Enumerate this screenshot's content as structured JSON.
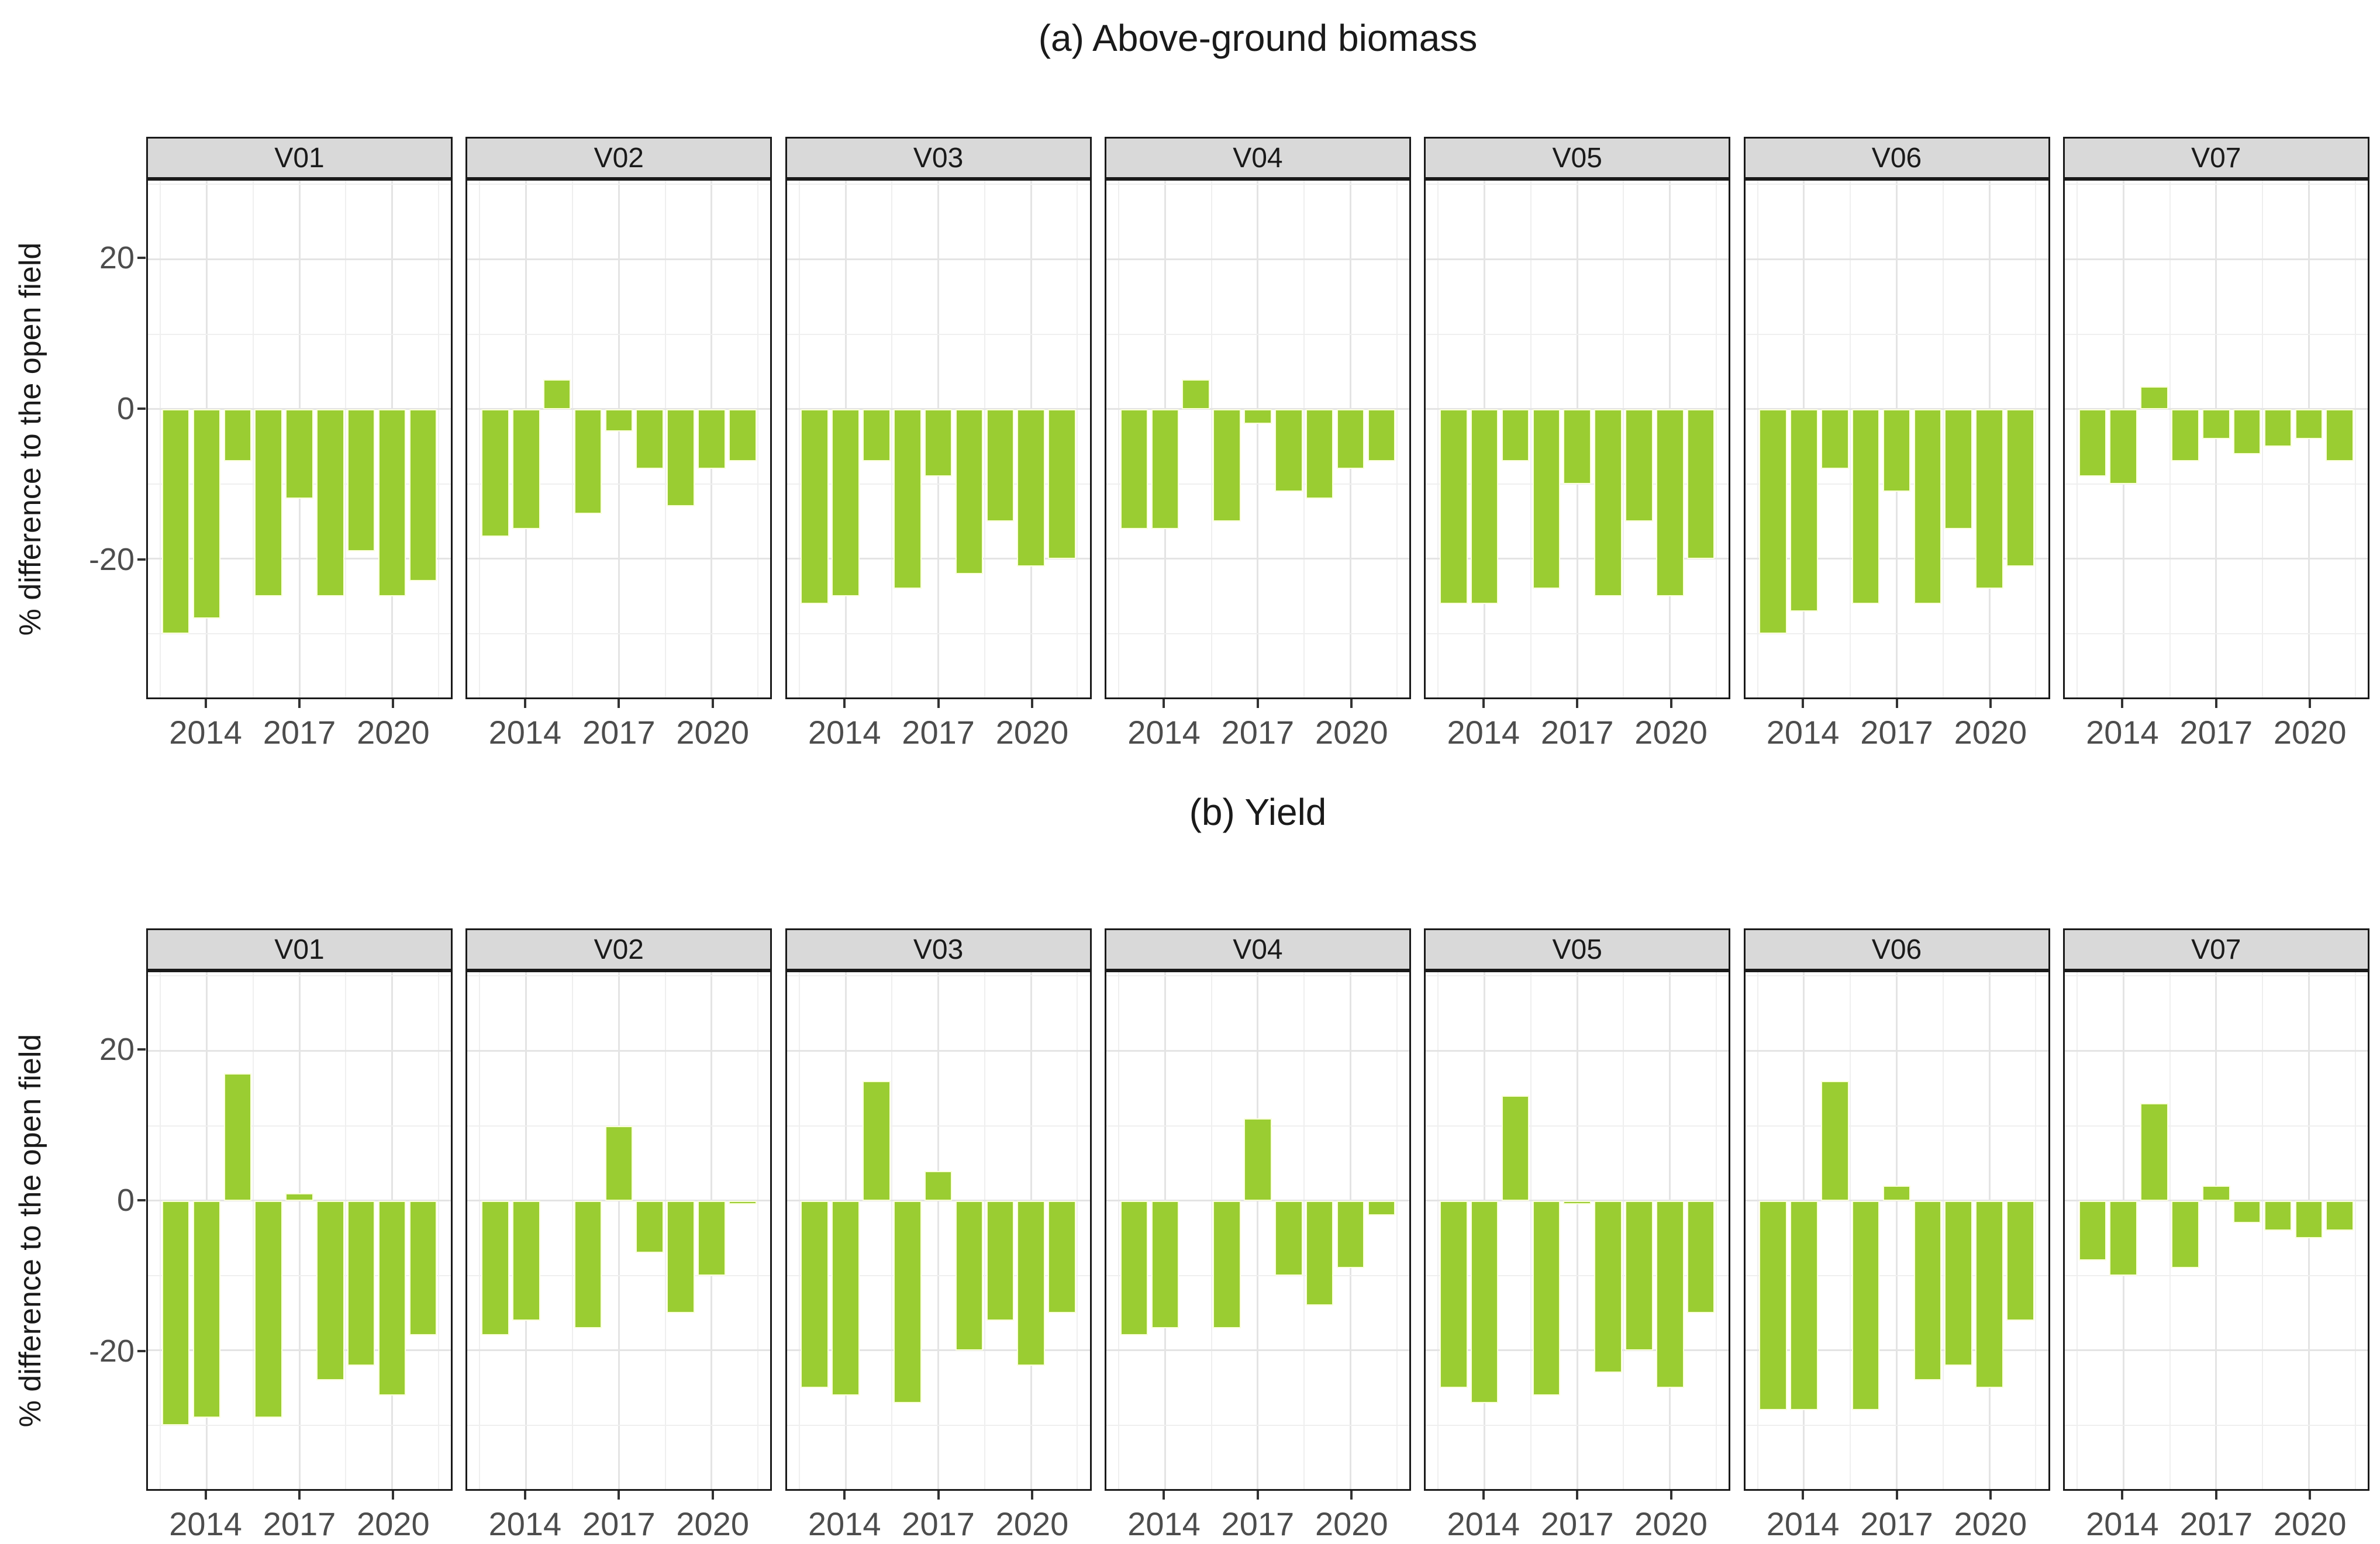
{
  "figure": {
    "title_a": "(a) Above-ground biomass",
    "title_b": "(b) Yield",
    "y_axis_label": "% difference to the open field"
  },
  "colors": {
    "bar_fill": "#9ACD32",
    "bar_edge": "#FBFFDB",
    "strip_bg": "#D9D9D9",
    "panel_border": "#1A1A1A",
    "grid_major": "#E4E4E4",
    "grid_minor": "#EFEFEF",
    "tick_label": "#4D4D4D"
  },
  "chart_data": [
    {
      "type": "bar",
      "title": "(a) Above-ground biomass",
      "ylabel": "% difference to the open field",
      "xlabel": "",
      "x": [
        2013,
        2014,
        2015,
        2016,
        2017,
        2018,
        2019,
        2020,
        2021
      ],
      "x_breaks": [
        2014,
        2017,
        2020
      ],
      "x_tick_labels": [
        "2014",
        "2017",
        "2020"
      ],
      "x_minor_breaks": [
        2012.5,
        2015.5,
        2018.5,
        2021.5
      ],
      "xlim": [
        2012.1,
        2021.9
      ],
      "y_breaks": [
        20,
        0,
        -20
      ],
      "y_tick_labels": [
        "20",
        "0",
        "-20"
      ],
      "y_minor_breaks": [
        30,
        10,
        -10,
        -30
      ],
      "ylim": [
        -38.5,
        30.5
      ],
      "bar_width": 0.9,
      "grid": true,
      "legend": "none",
      "series": [
        {
          "name": "V01",
          "values": [
            -30,
            -28,
            -7,
            -25,
            -12,
            -25,
            -19,
            -25,
            -23
          ]
        },
        {
          "name": "V02",
          "values": [
            -17,
            -16,
            4,
            -14,
            -3,
            -8,
            -13,
            -8,
            -7
          ]
        },
        {
          "name": "V03",
          "values": [
            -26,
            -25,
            -7,
            -24,
            -9,
            -22,
            -15,
            -21,
            -20
          ]
        },
        {
          "name": "V04",
          "values": [
            -16,
            -16,
            4,
            -15,
            -2,
            -11,
            -12,
            -8,
            -7
          ]
        },
        {
          "name": "V05",
          "values": [
            -26,
            -26,
            -7,
            -24,
            -10,
            -25,
            -15,
            -25,
            -20
          ]
        },
        {
          "name": "V06",
          "values": [
            -30,
            -27,
            -8,
            -26,
            -11,
            -26,
            -16,
            -24,
            -21
          ]
        },
        {
          "name": "V07",
          "values": [
            -9,
            -10,
            3,
            -7,
            -4,
            -6,
            -5,
            -4,
            -7
          ]
        }
      ]
    },
    {
      "type": "bar",
      "title": "(b) Yield",
      "ylabel": "% difference to the open field",
      "xlabel": "",
      "x": [
        2013,
        2014,
        2015,
        2016,
        2017,
        2018,
        2019,
        2020,
        2021
      ],
      "x_breaks": [
        2014,
        2017,
        2020
      ],
      "x_tick_labels": [
        "2014",
        "2017",
        "2020"
      ],
      "x_minor_breaks": [
        2012.5,
        2015.5,
        2018.5,
        2021.5
      ],
      "xlim": [
        2012.1,
        2021.9
      ],
      "y_breaks": [
        20,
        0,
        -20
      ],
      "y_tick_labels": [
        "20",
        "0",
        "-20"
      ],
      "y_minor_breaks": [
        30,
        10,
        -10,
        -30
      ],
      "ylim": [
        -38.5,
        30.5
      ],
      "bar_width": 0.9,
      "grid": true,
      "legend": "none",
      "series": [
        {
          "name": "V01",
          "values": [
            -30,
            -29,
            17,
            -29,
            1,
            -24,
            -22,
            -26,
            -18
          ]
        },
        {
          "name": "V02",
          "values": [
            -18,
            -16,
            0,
            -17,
            10,
            -7,
            -15,
            -10,
            -0.5
          ]
        },
        {
          "name": "V03",
          "values": [
            -25,
            -26,
            16,
            -27,
            4,
            -20,
            -16,
            -22,
            -15
          ]
        },
        {
          "name": "V04",
          "values": [
            -18,
            -17,
            0,
            -17,
            11,
            -10,
            -14,
            -9,
            -2
          ]
        },
        {
          "name": "V05",
          "values": [
            -25,
            -27,
            14,
            -26,
            -0.5,
            -23,
            -20,
            -25,
            -15
          ]
        },
        {
          "name": "V06",
          "values": [
            -28,
            -28,
            16,
            -28,
            2,
            -24,
            -22,
            -25,
            -16
          ]
        },
        {
          "name": "V07",
          "values": [
            -8,
            -10,
            13,
            -9,
            2,
            -3,
            -4,
            -5,
            -4
          ]
        }
      ]
    }
  ]
}
